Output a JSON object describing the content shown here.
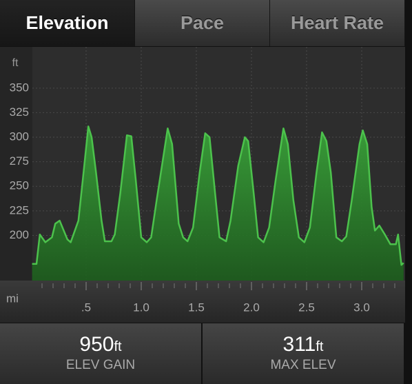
{
  "tabs": [
    "Elevation",
    "Pace",
    "Heart Rate"
  ],
  "chart_data": {
    "type": "area",
    "y_unit": "ft",
    "x_unit": "mi",
    "color": "#4cc24c",
    "grid": true,
    "x": [
      0.01,
      0.05,
      0.08,
      0.13,
      0.19,
      0.22,
      0.26,
      0.33,
      0.36,
      0.43,
      0.47,
      0.52,
      0.55,
      0.59,
      0.64,
      0.67,
      0.73,
      0.76,
      0.81,
      0.87,
      0.91,
      0.95,
      1.0,
      1.05,
      1.09,
      1.14,
      1.24,
      1.28,
      1.34,
      1.38,
      1.42,
      1.47,
      1.53,
      1.58,
      1.62,
      1.67,
      1.71,
      1.77,
      1.81,
      1.88,
      1.94,
      1.97,
      2.02,
      2.06,
      2.11,
      2.16,
      2.22,
      2.29,
      2.33,
      2.38,
      2.43,
      2.48,
      2.53,
      2.59,
      2.64,
      2.68,
      2.72,
      2.77,
      2.82,
      2.86,
      2.91,
      2.98,
      3.01,
      3.05,
      3.09,
      3.12,
      3.16,
      3.21,
      3.26,
      3.31,
      3.33,
      3.36,
      3.38
    ],
    "values": [
      171,
      171,
      201,
      193,
      198,
      212,
      215,
      196,
      193,
      215,
      257,
      311,
      300,
      264,
      215,
      194,
      194,
      201,
      243,
      302,
      301,
      257,
      198,
      193,
      198,
      236,
      309,
      293,
      212,
      198,
      194,
      208,
      264,
      304,
      300,
      243,
      198,
      194,
      215,
      271,
      300,
      296,
      243,
      198,
      193,
      208,
      257,
      309,
      293,
      236,
      198,
      193,
      208,
      264,
      305,
      296,
      264,
      198,
      194,
      199,
      236,
      293,
      307,
      293,
      229,
      205,
      210,
      201,
      191,
      191,
      201,
      170,
      172
    ],
    "xlim": [
      0,
      3.38
    ],
    "ylim": [
      154,
      392
    ],
    "yticks": [
      200,
      225,
      250,
      275,
      300,
      325,
      350
    ],
    "xticks": [
      {
        "value": 0.5,
        "label": ".5"
      },
      {
        "value": 1,
        "label": "1.0"
      },
      {
        "value": 1.5,
        "label": "1.5"
      },
      {
        "value": 2,
        "label": "2.0"
      },
      {
        "value": 2.5,
        "label": "2.5"
      },
      {
        "value": 3,
        "label": "3.0"
      }
    ],
    "xticks_minor": [
      0.1,
      0.2,
      0.3,
      0.4,
      0.6,
      0.7,
      0.8,
      0.9,
      1.1,
      1.2,
      1.3,
      1.4,
      1.6,
      1.7,
      1.8,
      1.9,
      2.1,
      2.2,
      2.3,
      2.4,
      2.6,
      2.7,
      2.8,
      2.9,
      3.1,
      3.2,
      3.3
    ]
  },
  "stats": [
    {
      "value": 950,
      "unit": "ft",
      "label": "ELEV GAIN"
    },
    {
      "value": 311,
      "unit": "ft",
      "label": "MAX ELEV"
    }
  ]
}
